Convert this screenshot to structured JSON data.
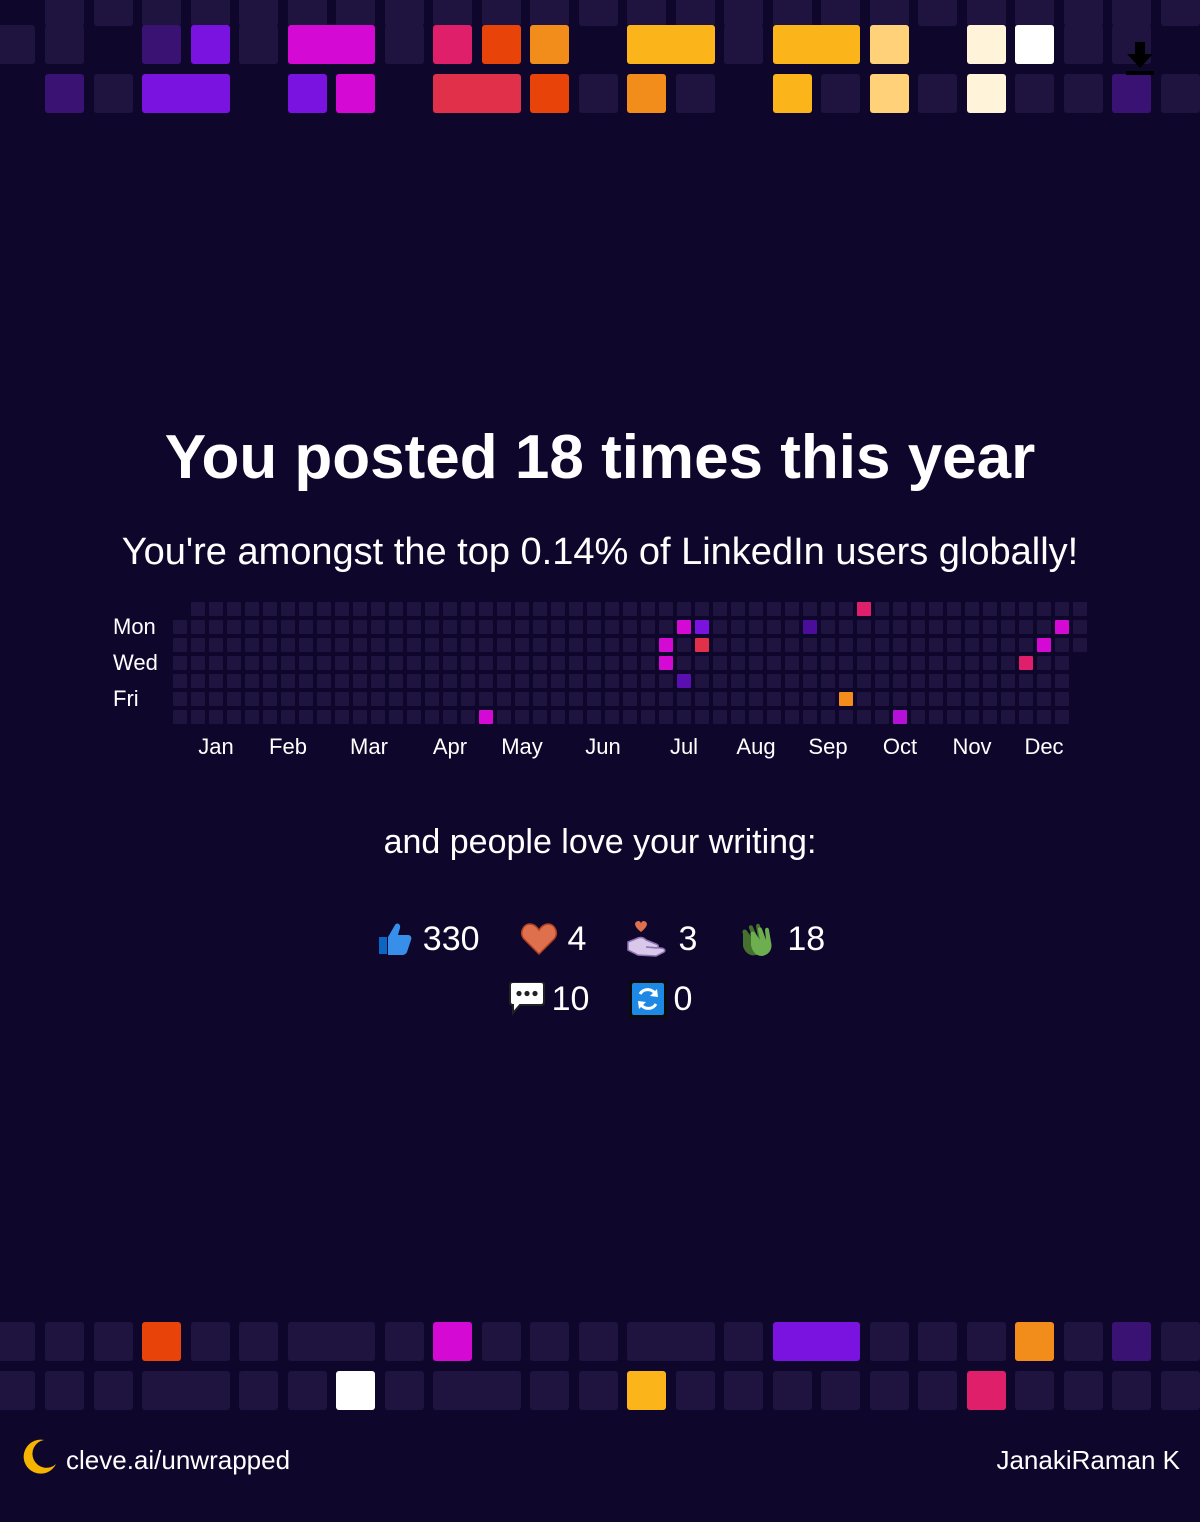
{
  "headline": "You posted 18 times this year",
  "subline": "You're amongst the top 0.14% of LinkedIn users globally!",
  "heatmap": {
    "day_labels": [
      "Mon",
      "Wed",
      "Fri"
    ],
    "months": [
      "Jan",
      "Feb",
      "Mar",
      "Apr",
      "May",
      "Jun",
      "Jul",
      "Aug",
      "Sep",
      "Oct",
      "Nov",
      "Dec"
    ],
    "empty_color": "#1f1440",
    "post_days": [
      {
        "week": 17,
        "row": 6,
        "color": "#d40ad4"
      },
      {
        "week": 27,
        "row": 2,
        "color": "#d40ad4"
      },
      {
        "week": 27,
        "row": 3,
        "color": "#d40ad4"
      },
      {
        "week": 28,
        "row": 1,
        "color": "#d40ad4"
      },
      {
        "week": 28,
        "row": 4,
        "color": "#5a0fb0"
      },
      {
        "week": 29,
        "row": 1,
        "color": "#7a12e0"
      },
      {
        "week": 29,
        "row": 2,
        "color": "#e0304a"
      },
      {
        "week": 35,
        "row": 1,
        "color": "#4a0e9a"
      },
      {
        "week": 37,
        "row": 5,
        "color": "#f28c1a"
      },
      {
        "week": 38,
        "row": 0,
        "color": "#e01f6a"
      },
      {
        "week": 40,
        "row": 6,
        "color": "#b410d8"
      },
      {
        "week": 47,
        "row": 3,
        "color": "#e01f6a"
      },
      {
        "week": 48,
        "row": 2,
        "color": "#d40ad4"
      },
      {
        "week": 49,
        "row": 1,
        "color": "#d40ad4"
      }
    ]
  },
  "love_text": "and people love your writing:",
  "reactions": [
    {
      "icon": "thumbs-up-icon",
      "value": "330"
    },
    {
      "icon": "heart-icon",
      "value": "4"
    },
    {
      "icon": "support-hand-icon",
      "value": "3"
    },
    {
      "icon": "clapping-hands-icon",
      "value": "18"
    },
    {
      "icon": "comment-icon",
      "value": "10"
    },
    {
      "icon": "repost-icon",
      "value": "0"
    }
  ],
  "footer": {
    "brand_link": "cleve.ai/unwrapped",
    "user_name": "JanakiRaman K"
  },
  "colors": {
    "background": "#0f062b",
    "tile_empty": "#1f1440",
    "brand_moon": "#f5b400",
    "palette": [
      "#3a1273",
      "#7a12e0",
      "#d40ad4",
      "#e01f6a",
      "#e0304a",
      "#e84308",
      "#f28c1a",
      "#fbb41a",
      "#ffd27a",
      "#fff3d9",
      "#ffffff"
    ]
  }
}
